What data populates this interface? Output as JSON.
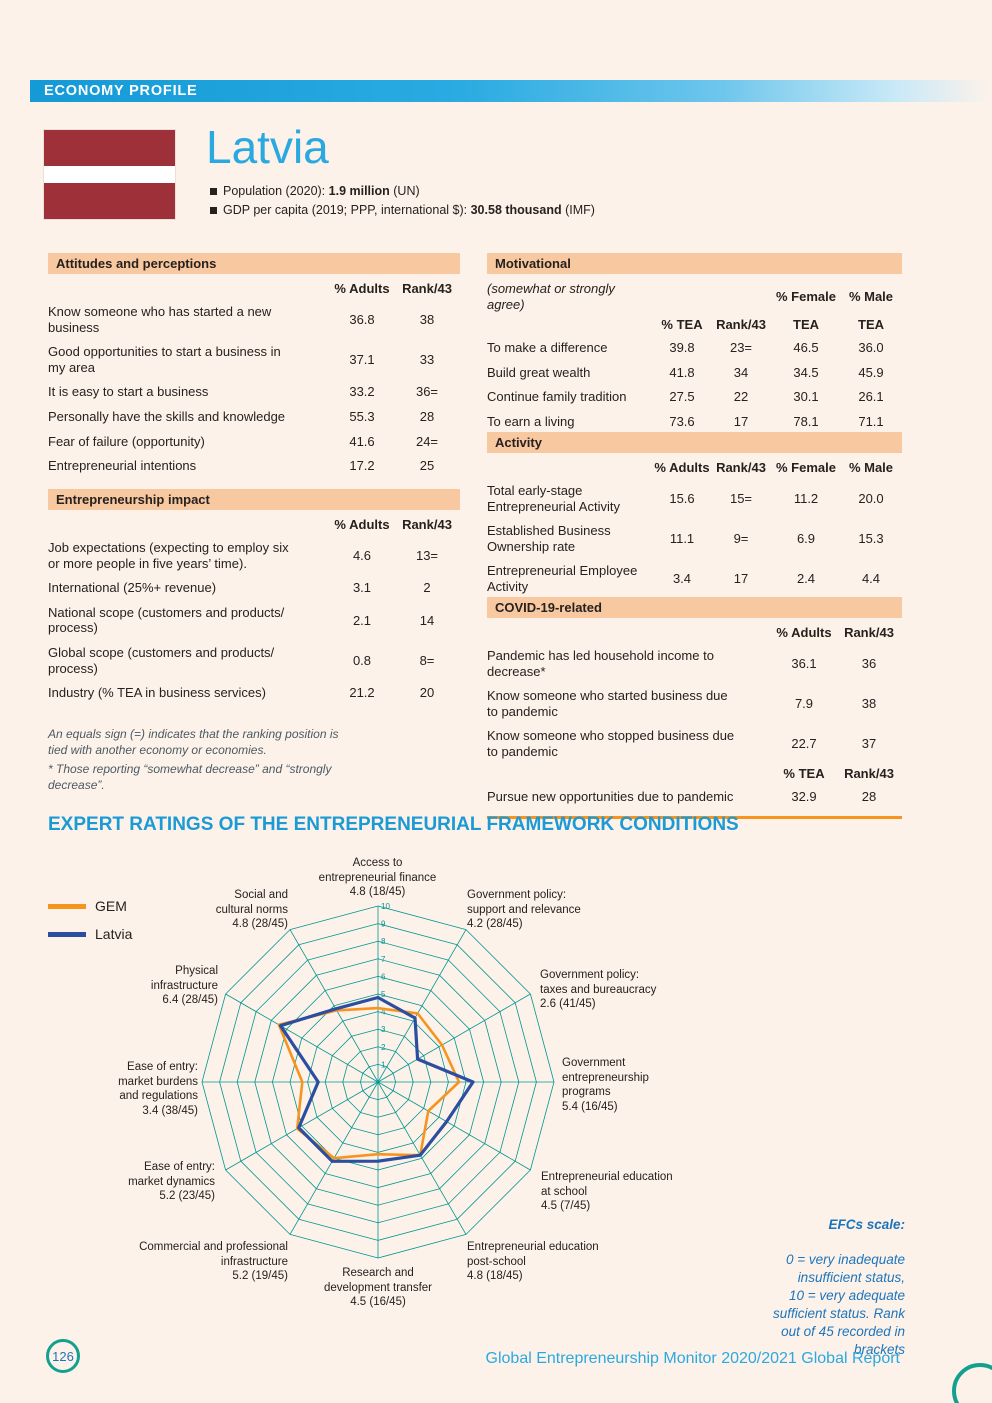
{
  "page": {
    "banner": "ECONOMY PROFILE",
    "country": "Latvia",
    "footer_page": "126",
    "footer_text": "Global Entrepreneurship Monitor 2020/2021 Global Report"
  },
  "header": {
    "population_label": "Population (2020): ",
    "population_value": "1.9 million",
    "population_source": " (UN)",
    "gdp_label": "GDP per capita (2019; PPP, international $): ",
    "gdp_value": "30.58 thousand",
    "gdp_source": " (IMF)"
  },
  "flag": {
    "maroon": "#9e3039",
    "white": "#ffffff"
  },
  "colors": {
    "accent_blue": "#2aa9e0",
    "heading_blue": "#1b9ad5",
    "note_blue": "#1c75bc",
    "peach_header": "#f8c8a0",
    "orange": "#f7941e",
    "navy": "#2b4ea0",
    "teal_grid": "#00968f"
  },
  "attitudes": {
    "title": "Attitudes and perceptions",
    "col1": "% Adults",
    "col2": "Rank/43",
    "rows": [
      {
        "label": "Know someone who has started a new\nbusiness",
        "v1": "36.8",
        "v2": "38"
      },
      {
        "label": "Good opportunities to start a business in\nmy area",
        "v1": "37.1",
        "v2": "33"
      },
      {
        "label": "It is easy to start a business",
        "v1": "33.2",
        "v2": "36="
      },
      {
        "label": "Personally have the skills and knowledge",
        "v1": "55.3",
        "v2": "28"
      },
      {
        "label": "Fear of failure (opportunity)",
        "v1": "41.6",
        "v2": "24="
      },
      {
        "label": "Entrepreneurial intentions",
        "v1": "17.2",
        "v2": "25"
      }
    ]
  },
  "impact": {
    "title": "Entrepreneurship impact",
    "col1": "% Adults",
    "col2": "Rank/43",
    "rows": [
      {
        "label": "Job expectations (expecting to employ six\nor more people in five years’ time).",
        "v1": "4.6",
        "v2": "13="
      },
      {
        "label": "International (25%+ revenue)",
        "v1": "3.1",
        "v2": "2"
      },
      {
        "label": "National scope (customers and products/\nprocess)",
        "v1": "2.1",
        "v2": "14"
      },
      {
        "label": "Global scope (customers and products/\nprocess)",
        "v1": "0.8",
        "v2": "8="
      },
      {
        "label": "Industry (% TEA in business services)",
        "v1": "21.2",
        "v2": "20"
      }
    ]
  },
  "footnotes": {
    "equals": "An equals sign (=) indicates that the ranking position is\ntied with another economy or economies.",
    "decrease": "* Those reporting “somewhat decrease” and “strongly\ndecrease”."
  },
  "motivational": {
    "title": "Motivational",
    "subtitle": "(somewhat or strongly agree)",
    "h_female": "% Female",
    "h_male": "% Male",
    "h_tea": "% TEA",
    "h_rank": "Rank/43",
    "h_tea_f": "TEA",
    "h_tea_m": "TEA",
    "rows": [
      {
        "label": "To make a difference",
        "v1": "39.8",
        "v2": "23=",
        "v3": "46.5",
        "v4": "36.0"
      },
      {
        "label": "Build great wealth",
        "v1": "41.8",
        "v2": "34",
        "v3": "34.5",
        "v4": "45.9"
      },
      {
        "label": "Continue family tradition",
        "v1": "27.5",
        "v2": "22",
        "v3": "30.1",
        "v4": "26.1"
      },
      {
        "label": "To earn a living",
        "v1": "73.6",
        "v2": "17",
        "v3": "78.1",
        "v4": "71.1"
      }
    ]
  },
  "activity": {
    "title": "Activity",
    "col1": "% Adults",
    "col2": "Rank/43",
    "col3": "% Female",
    "col4": "% Male",
    "rows": [
      {
        "label": "Total early-stage\nEntrepreneurial Activity",
        "v1": "15.6",
        "v2": "15=",
        "v3": "11.2",
        "v4": "20.0"
      },
      {
        "label": "Established Business\nOwnership rate",
        "v1": "11.1",
        "v2": "9=",
        "v3": "6.9",
        "v4": "15.3"
      },
      {
        "label": "Entrepreneurial Employee\nActivity",
        "v1": "3.4",
        "v2": "17",
        "v3": "2.4",
        "v4": "4.4"
      }
    ]
  },
  "covid": {
    "title": "COVID-19-related",
    "col1": "% Adults",
    "col2": "Rank/43",
    "rows": [
      {
        "label": "Pandemic has led household income to\ndecrease*",
        "v1": "36.1",
        "v2": "36"
      },
      {
        "label": "Know someone who started business due\nto pandemic",
        "v1": "7.9",
        "v2": "38"
      },
      {
        "label": "Know someone who stopped business due\nto pandemic",
        "v1": "22.7",
        "v2": "37"
      }
    ],
    "col1b": "% TEA",
    "col2b": "Rank/43",
    "rows2": [
      {
        "label": "Pursue new opportunities due to pandemic",
        "v1": "32.9",
        "v2": "28"
      }
    ]
  },
  "expert": {
    "heading": "EXPERT RATINGS OF THE ENTREPRENEURIAL FRAMEWORK CONDITIONS",
    "legend_gem": "GEM",
    "legend_latvia": "Latvia",
    "note_title": "EFCs scale:",
    "note_body": "0 = very inadequate\ninsufficient status,\n10 = very adequate\nsufficient status. Rank\nout of 45 recorded in\nbrackets"
  },
  "chart_data": {
    "type": "radar",
    "title": "Expert ratings of the entrepreneurial framework conditions",
    "scale_min": 0,
    "scale_max": 10,
    "ticks": [
      1,
      2,
      3,
      4,
      5,
      6,
      7,
      8,
      9,
      10
    ],
    "grid_color": "#00968f",
    "legend_position": "left",
    "categories": [
      "Access to entrepreneurial finance",
      "Government policy: support and relevance",
      "Government policy: taxes and bureaucracy",
      "Government entrepreneurship programs",
      "Entrepreneurial education at school",
      "Entrepreneurial education post-school",
      "Research and development transfer",
      "Commercial and professional infrastructure",
      "Ease of entry: market dynamics",
      "Ease of entry: market burdens and regulations",
      "Physical infrastructure",
      "Social and cultural norms"
    ],
    "labels": [
      "Access to\nentrepreneurial finance\n4.8 (18/45)",
      "Government policy:\nsupport and relevance\n4.2 (28/45)",
      "Government policy:\ntaxes and bureaucracy\n2.6 (41/45)",
      "Government\nentrepreneurship\nprograms\n5.4 (16/45)",
      "Entrepreneurial education\nat school\n4.5 (7/45)",
      "Entrepreneurial education\npost-school\n4.8 (18/45)",
      "Research and\ndevelopment transfer\n4.5 (16/45)",
      "Commercial and professional\ninfrastructure\n5.2 (19/45)",
      "Ease of entry:\nmarket dynamics\n5.2 (23/45)",
      "Ease of entry:\nmarket burdens\nand regulations\n3.4 (38/45)",
      "Physical\ninfrastructure\n6.4 (28/45)",
      "Social and\ncultural norms\n4.8 (28/45)"
    ],
    "series": [
      {
        "name": "GEM",
        "color": "#f7941e",
        "values": [
          4.2,
          4.5,
          4.2,
          4.6,
          3.3,
          4.8,
          4.1,
          5.0,
          5.3,
          4.3,
          6.5,
          4.7
        ]
      },
      {
        "name": "Latvia",
        "color": "#2b4ea0",
        "values": [
          4.8,
          4.2,
          2.6,
          5.4,
          4.5,
          4.8,
          4.5,
          5.2,
          5.2,
          3.4,
          6.4,
          4.8
        ]
      }
    ]
  }
}
